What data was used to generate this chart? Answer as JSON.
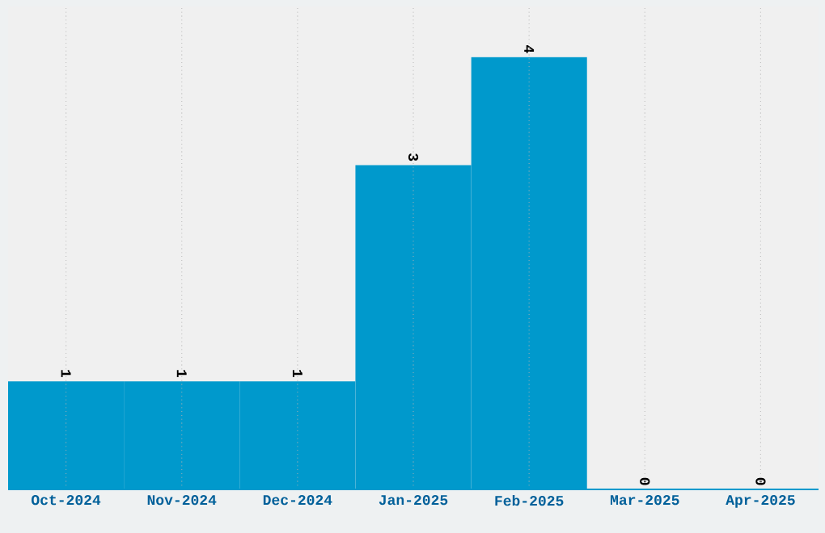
{
  "chart_data": {
    "type": "bar",
    "categories": [
      "Oct-2024",
      "Nov-2024",
      "Dec-2024",
      "Jan-2025",
      "Feb-2025",
      "Mar-2025",
      "Apr-2025"
    ],
    "values": [
      1,
      1,
      1,
      3,
      4,
      0,
      0
    ],
    "color": "#0099cc",
    "data_labels": true,
    "grid": true
  }
}
